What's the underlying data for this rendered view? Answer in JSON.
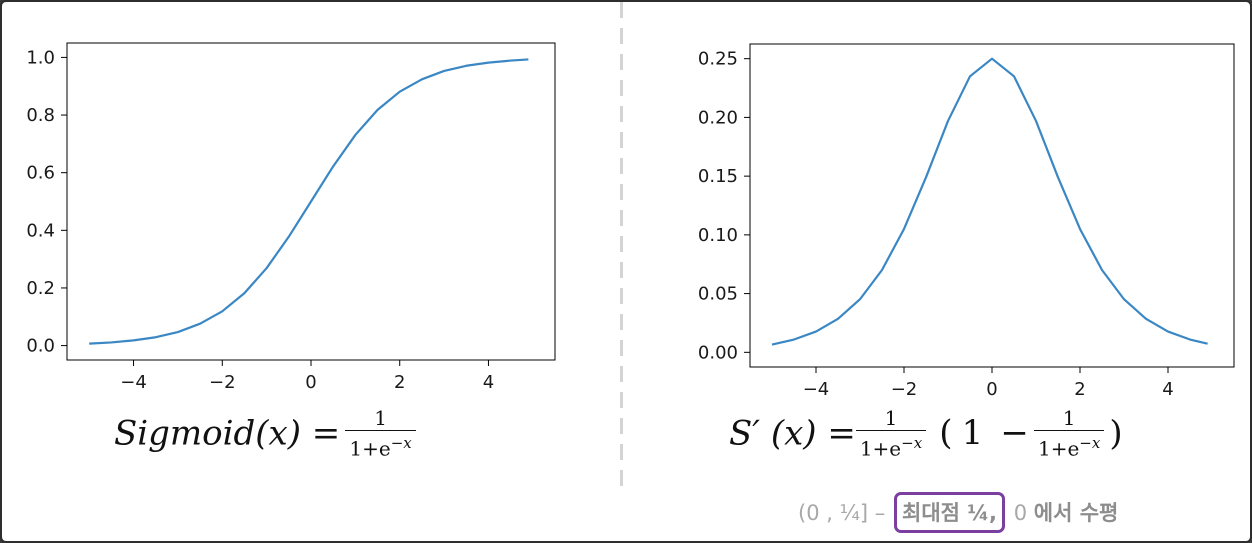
{
  "chart_data": [
    {
      "type": "line",
      "title": "",
      "xlabel": "",
      "ylabel": "",
      "xlim": [
        -5.5,
        5.5
      ],
      "ylim": [
        -0.05,
        1.05
      ],
      "xticks": [
        -4,
        -2,
        0,
        2,
        4
      ],
      "yticks": [
        0.0,
        0.2,
        0.4,
        0.6,
        0.8,
        1.0
      ],
      "xtick_labels": [
        "−4",
        "−2",
        "0",
        "2",
        "4"
      ],
      "ytick_labels": [
        "0.0",
        "0.2",
        "0.4",
        "0.6",
        "0.8",
        "1.0"
      ],
      "x": [
        -5,
        -4.5,
        -4,
        -3.5,
        -3,
        -2.5,
        -2,
        -1.5,
        -1,
        -0.5,
        0,
        0.5,
        1,
        1.5,
        2,
        2.5,
        3,
        3.5,
        4,
        4.5,
        4.9
      ],
      "series": [
        {
          "values": [
            0.0067,
            0.011,
            0.018,
            0.029,
            0.047,
            0.076,
            0.119,
            0.182,
            0.269,
            0.378,
            0.5,
            0.622,
            0.731,
            0.818,
            0.881,
            0.924,
            0.953,
            0.971,
            0.982,
            0.989,
            0.993
          ],
          "color": "#3a87c4"
        }
      ],
      "grid": false,
      "legend": "none"
    },
    {
      "type": "line",
      "title": "",
      "xlabel": "",
      "ylabel": "",
      "xlim": [
        -5.5,
        5.5
      ],
      "ylim": [
        -0.0125,
        0.2625
      ],
      "xticks": [
        -4,
        -2,
        0,
        2,
        4
      ],
      "yticks": [
        0.0,
        0.05,
        0.1,
        0.15,
        0.2,
        0.25
      ],
      "xtick_labels": [
        "−4",
        "−2",
        "0",
        "2",
        "4"
      ],
      "ytick_labels": [
        "0.00",
        "0.05",
        "0.10",
        "0.15",
        "0.20",
        "0.25"
      ],
      "x": [
        -5,
        -4.5,
        -4,
        -3.5,
        -3,
        -2.5,
        -2,
        -1.5,
        -1,
        -0.5,
        0,
        0.5,
        1,
        1.5,
        2,
        2.5,
        3,
        3.5,
        4,
        4.5,
        4.9
      ],
      "series": [
        {
          "values": [
            0.0066,
            0.0109,
            0.0177,
            0.0285,
            0.0452,
            0.0701,
            0.105,
            0.149,
            0.197,
            0.235,
            0.25,
            0.235,
            0.197,
            0.149,
            0.105,
            0.0701,
            0.0452,
            0.0285,
            0.0177,
            0.0109,
            0.0073
          ],
          "color": "#3a87c4"
        }
      ],
      "grid": false,
      "legend": "none"
    }
  ],
  "formulas": {
    "left": {
      "lhs": "Sigmoid(x) =",
      "num": "1",
      "den_base": "1+e",
      "den_exp": "−x"
    },
    "right": {
      "lhs": "S′ (x) =",
      "num1": "1",
      "den1_base": "1+e",
      "den1_exp": "−x",
      "open": "(",
      "one": "1",
      "minus": "−",
      "num2": "1",
      "den2_base": "1+e",
      "den2_exp": "−x",
      "close": ")"
    }
  },
  "caption": {
    "prefix": "(0 , ¼] –",
    "highlight": "최대점 ¼,",
    "mid": "0",
    "suffix": "에서 수평"
  },
  "colors": {
    "line": "#3a87c4",
    "highlight_border": "#7b3fa0",
    "divider": "#d4d4d4"
  }
}
